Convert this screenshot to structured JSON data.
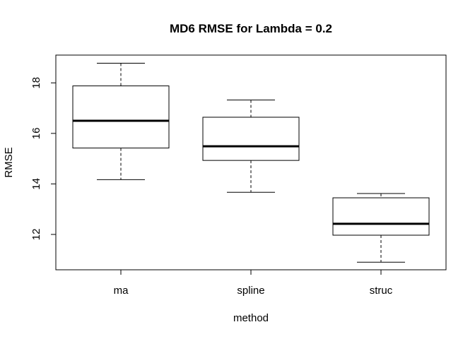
{
  "chart_data": {
    "type": "boxplot",
    "title": "MD6 RMSE for Lambda =  0.2",
    "xlabel": "method",
    "ylabel": "RMSE",
    "categories": [
      "ma",
      "spline",
      "struc"
    ],
    "boxes": [
      {
        "name": "ma",
        "whisker_low": 14.17,
        "q1": 15.42,
        "median": 16.5,
        "q3": 17.88,
        "whisker_high": 18.78
      },
      {
        "name": "spline",
        "whisker_low": 13.67,
        "q1": 14.93,
        "median": 15.49,
        "q3": 16.64,
        "whisker_high": 17.32
      },
      {
        "name": "struc",
        "whisker_low": 10.9,
        "q1": 11.97,
        "median": 12.42,
        "q3": 13.45,
        "whisker_high": 13.62
      }
    ],
    "yticks": [
      12,
      14,
      16,
      18
    ],
    "ytick_labels": [
      "12",
      "14",
      "16",
      "18"
    ],
    "ylim": [
      10.6,
      19.1
    ],
    "grid": false
  }
}
